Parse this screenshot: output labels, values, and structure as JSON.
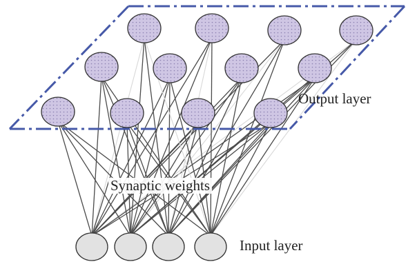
{
  "labels": {
    "output_layer": "Output layer",
    "synaptic_weights": "Synaptic weights",
    "input_layer": "Input layer"
  },
  "colors": {
    "output_node_fill": "#cfc6e4",
    "output_node_dots": "#8a7fb0",
    "input_node_fill": "#e2e2e2",
    "node_stroke": "#333333",
    "connection": "#4a4a4a",
    "connection_light": "#d8d8d8",
    "plane_border": "#4659a8"
  },
  "layers": {
    "output": {
      "rows": 3,
      "columns": 4
    },
    "input": {
      "count": 4
    }
  }
}
